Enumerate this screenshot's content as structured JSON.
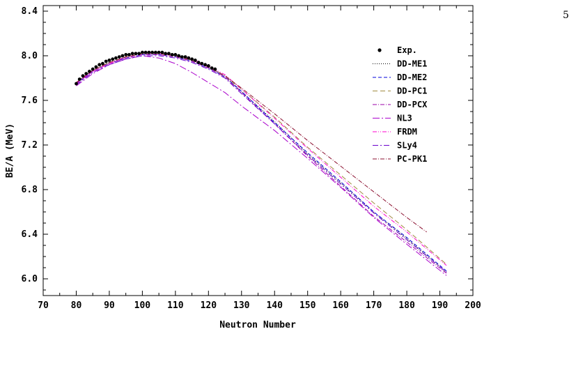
{
  "page": {
    "number": "5"
  },
  "chart_data": {
    "type": "line",
    "xlabel": "Neutron Number",
    "ylabel": "BE/A (MeV)",
    "xlim": [
      70,
      200
    ],
    "ylim": [
      5.85,
      8.45
    ],
    "xticks": [
      "70",
      "80",
      "90",
      "100",
      "110",
      "120",
      "130",
      "140",
      "150",
      "160",
      "170",
      "180",
      "190",
      "200"
    ],
    "yticks": [
      "6.0",
      "6.4",
      "6.8",
      "7.2",
      "7.6",
      "8.0",
      "8.4"
    ],
    "grid": false,
    "legend_position": "upper-right",
    "exp": {
      "name": "Exp.",
      "x": [
        80,
        81,
        82,
        83,
        84,
        85,
        86,
        87,
        88,
        89,
        90,
        91,
        92,
        93,
        94,
        95,
        96,
        97,
        98,
        99,
        100,
        101,
        102,
        103,
        104,
        105,
        106,
        107,
        108,
        109,
        110,
        111,
        112,
        113,
        114,
        115,
        116,
        117,
        118,
        119,
        120,
        121,
        122
      ],
      "y": [
        7.75,
        7.79,
        7.82,
        7.84,
        7.86,
        7.88,
        7.9,
        7.92,
        7.93,
        7.95,
        7.96,
        7.97,
        7.98,
        7.99,
        8.0,
        8.01,
        8.01,
        8.02,
        8.02,
        8.02,
        8.03,
        8.03,
        8.03,
        8.03,
        8.03,
        8.03,
        8.03,
        8.02,
        8.02,
        8.01,
        8.01,
        8.0,
        7.99,
        7.99,
        7.98,
        7.97,
        7.96,
        7.94,
        7.93,
        7.92,
        7.91,
        7.89,
        7.88
      ]
    },
    "series": [
      {
        "name": "DD-ME1",
        "color": "#000000",
        "dash": "1,2",
        "x": [
          80,
          85,
          90,
          95,
          100,
          105,
          110,
          115,
          120,
          125,
          130,
          140,
          150,
          160,
          170,
          180,
          192
        ],
        "y": [
          7.76,
          7.87,
          7.94,
          7.99,
          8.02,
          8.02,
          8.0,
          7.96,
          7.9,
          7.82,
          7.68,
          7.41,
          7.12,
          6.86,
          6.6,
          6.36,
          6.06
        ]
      },
      {
        "name": "DD-ME2",
        "color": "#0000dd",
        "dash": "5,3",
        "x": [
          80,
          85,
          90,
          95,
          100,
          105,
          110,
          115,
          120,
          125,
          130,
          140,
          150,
          160,
          170,
          180,
          192
        ],
        "y": [
          7.75,
          7.86,
          7.93,
          7.98,
          8.01,
          8.01,
          7.99,
          7.95,
          7.89,
          7.81,
          7.68,
          7.4,
          7.13,
          6.87,
          6.6,
          6.37,
          6.07
        ]
      },
      {
        "name": "DD-PC1",
        "color": "#a08a40",
        "dash": "7,4",
        "x": [
          80,
          85,
          90,
          95,
          100,
          105,
          110,
          115,
          120,
          125,
          130,
          140,
          150,
          160,
          170,
          180,
          192
        ],
        "y": [
          7.76,
          7.87,
          7.94,
          7.99,
          8.02,
          8.02,
          8.0,
          7.96,
          7.9,
          7.82,
          7.7,
          7.45,
          7.18,
          6.93,
          6.68,
          6.44,
          6.13
        ]
      },
      {
        "name": "DD-PCX",
        "color": "#9b00a8",
        "dash": "6,2,1,2",
        "x": [
          80,
          85,
          90,
          95,
          100,
          105,
          110,
          115,
          120,
          125,
          130,
          140,
          150,
          160,
          170,
          180,
          192
        ],
        "y": [
          7.75,
          7.86,
          7.93,
          7.98,
          8.01,
          8.01,
          7.99,
          7.95,
          7.89,
          7.81,
          7.67,
          7.39,
          7.1,
          6.83,
          6.56,
          6.33,
          6.05
        ]
      },
      {
        "name": "NL3",
        "color": "#aa00cc",
        "dash": "10,3,2,3",
        "x": [
          80,
          85,
          90,
          95,
          100,
          105,
          110,
          115,
          120,
          125,
          130,
          140,
          150,
          160,
          170,
          180,
          192
        ],
        "y": [
          7.73,
          7.84,
          7.92,
          7.97,
          8.0,
          7.98,
          7.93,
          7.85,
          7.76,
          7.67,
          7.55,
          7.33,
          7.08,
          6.82,
          6.55,
          6.31,
          6.03
        ]
      },
      {
        "name": "FRDM",
        "color": "#ff00cc",
        "dash": "6,2,1,2,1,2",
        "x": [
          80,
          85,
          90,
          95,
          100,
          105,
          110,
          115,
          120,
          125,
          130,
          140,
          150,
          160,
          170,
          180,
          192
        ],
        "y": [
          7.76,
          7.86,
          7.93,
          7.99,
          8.02,
          8.02,
          8.0,
          7.97,
          7.91,
          7.83,
          7.7,
          7.44,
          7.17,
          6.91,
          6.65,
          6.42,
          6.12
        ]
      },
      {
        "name": "SLy4",
        "color": "#6a00cc",
        "dash": "8,3,2,3",
        "x": [
          80,
          85,
          90,
          95,
          100,
          105,
          110,
          115,
          120,
          125,
          130,
          140,
          150,
          160,
          170,
          180,
          192
        ],
        "y": [
          7.74,
          7.85,
          7.92,
          7.97,
          8.0,
          8.0,
          7.98,
          7.94,
          7.88,
          7.8,
          7.66,
          7.39,
          7.11,
          6.85,
          6.59,
          6.35,
          6.06
        ]
      },
      {
        "name": "PC-PK1",
        "color": "#8b1030",
        "dash": "6,2,1,2",
        "x": [
          80,
          85,
          90,
          95,
          100,
          105,
          110,
          115,
          120,
          125,
          130,
          140,
          150,
          160,
          170,
          180,
          186
        ],
        "y": [
          7.76,
          7.87,
          7.94,
          7.99,
          8.02,
          8.02,
          8.0,
          7.96,
          7.9,
          7.82,
          7.71,
          7.48,
          7.24,
          7.01,
          6.78,
          6.55,
          6.42
        ]
      }
    ]
  }
}
